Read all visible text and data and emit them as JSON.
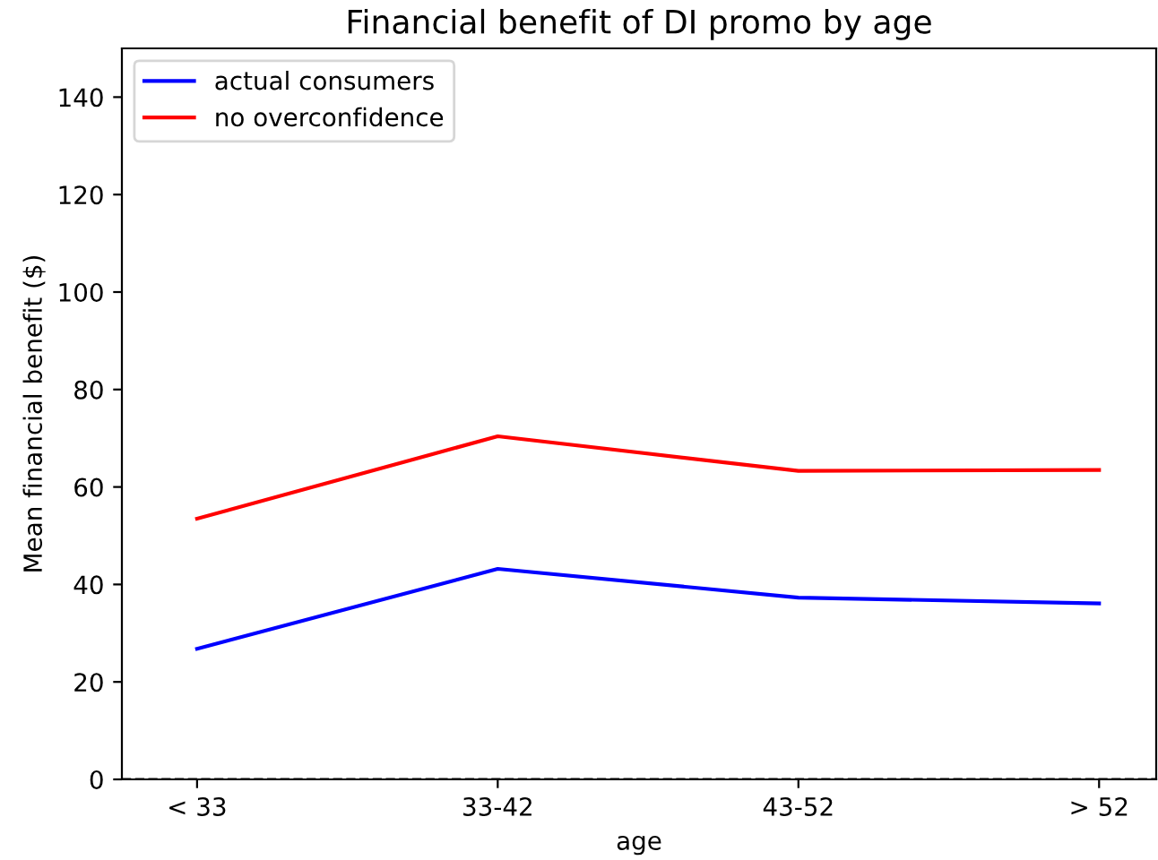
{
  "chart_data": {
    "type": "line",
    "title": "Financial benefit of DI promo by age",
    "xlabel": "age",
    "ylabel": "Mean financial benefit ($)",
    "categories": [
      "< 33",
      "33-42",
      "43-52",
      "> 52"
    ],
    "series": [
      {
        "name": "actual consumers",
        "color": "#0000ff",
        "values": [
          26.8,
          43.2,
          37.3,
          36.1
        ]
      },
      {
        "name": "no overconfidence",
        "color": "#ff0000",
        "values": [
          53.5,
          70.4,
          63.3,
          63.5
        ]
      }
    ],
    "ylim": [
      0,
      150
    ],
    "yticks": [
      0,
      20,
      40,
      60,
      80,
      100,
      120,
      140
    ],
    "ref_lines": [
      {
        "axis": "y",
        "value": 0,
        "label": null,
        "color": "#000000",
        "line_style": "dashed"
      }
    ],
    "legend": "top left",
    "grid": false
  }
}
